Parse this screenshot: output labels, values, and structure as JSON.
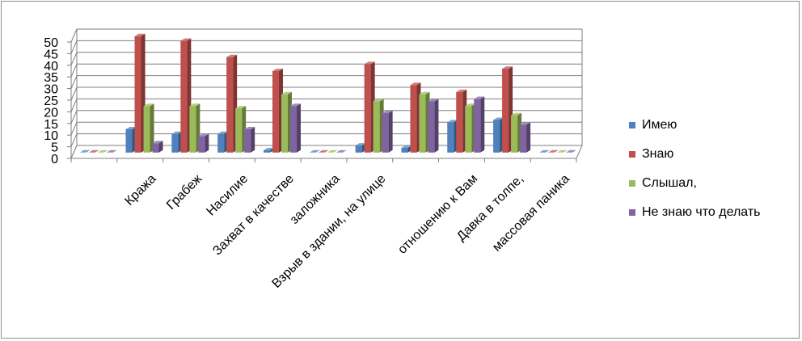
{
  "chart_data": {
    "type": "bar",
    "style": "3d-clustered-column",
    "categories": [
      "",
      "Кража",
      "Грабеж",
      "Насилие",
      "Захват в качестве",
      "заложника",
      "Взрыв в здании, на улице",
      "",
      "отношению к Вам",
      "Давка в толпе,",
      "массовая паника"
    ],
    "series": [
      {
        "name": "Имею",
        "color": "#4f81bd",
        "values": [
          0,
          10,
          8,
          8,
          1,
          0,
          3,
          2,
          13,
          14,
          0
        ]
      },
      {
        "name": "Знаю",
        "color": "#c0504d",
        "values": [
          0,
          50,
          48,
          41,
          35,
          0,
          38,
          29,
          26,
          36,
          0
        ]
      },
      {
        "name": "Слышал,",
        "color": "#9bbb59",
        "values": [
          0,
          20,
          20,
          19,
          25,
          0,
          22,
          25,
          20,
          16,
          0
        ]
      },
      {
        "name": "Не знаю что делать",
        "color": "#8064a2",
        "values": [
          0,
          4,
          7,
          10,
          20,
          0,
          17,
          22,
          23,
          12,
          0
        ]
      }
    ],
    "yticks": [
      "0",
      "5",
      "10",
      "15",
      "20",
      "25",
      "30",
      "35",
      "40",
      "45",
      "50"
    ],
    "ylim": [
      0,
      50
    ],
    "title": "",
    "xlabel": "",
    "ylabel": "",
    "grid": true,
    "legend_position": "right"
  }
}
